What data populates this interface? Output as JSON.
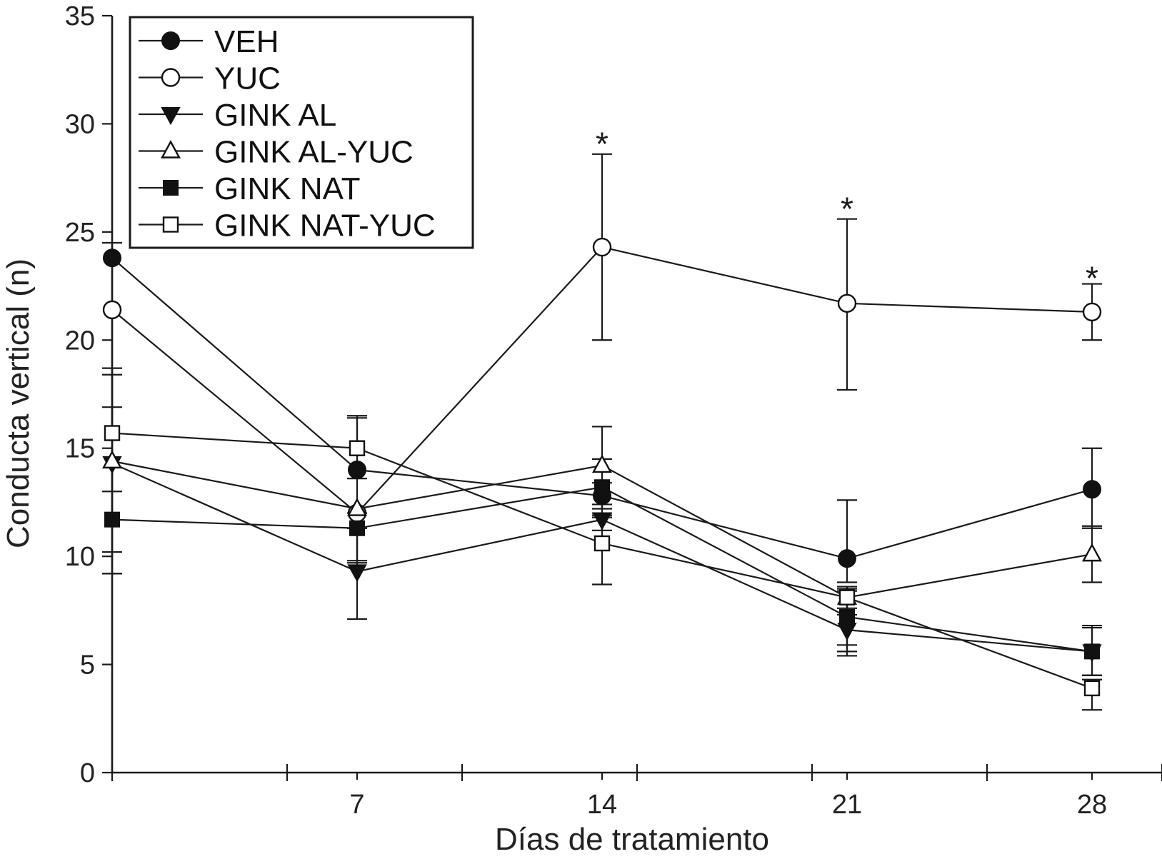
{
  "chart_data": {
    "type": "line",
    "title": "",
    "xlabel": "Días de tratamiento",
    "ylabel": "Conducta vertical (n)",
    "xlim": [
      0,
      30
    ],
    "ylim": [
      0,
      35
    ],
    "x_ticks": [
      7,
      14,
      21,
      28
    ],
    "x_tick_labels": [
      "7",
      "14",
      "21",
      "28"
    ],
    "x_minor_ticks": [
      0,
      5,
      10,
      15,
      20,
      25,
      30
    ],
    "y_ticks": [
      0,
      5,
      10,
      15,
      20,
      25,
      30,
      35
    ],
    "y_tick_labels": [
      "0",
      "5",
      "10",
      "15",
      "20",
      "25",
      "30",
      "35"
    ],
    "x": [
      0,
      7,
      14,
      21,
      28
    ],
    "grid": false,
    "legend_position": "top-left",
    "series": [
      {
        "name": "VEH",
        "marker": "filled-circle",
        "values": [
          23.8,
          14.0,
          12.8,
          9.9,
          13.1
        ],
        "err_upper": [
          null,
          null,
          13.4,
          12.6,
          15.0
        ],
        "err_lower": [
          null,
          null,
          12.2,
          8.8,
          11.3
        ]
      },
      {
        "name": "YUC",
        "marker": "open-circle",
        "values": [
          21.4,
          12.0,
          24.3,
          21.7,
          21.3
        ],
        "err_upper": [
          null,
          null,
          28.6,
          25.6,
          22.6
        ],
        "err_lower": [
          null,
          null,
          20.0,
          17.7,
          20.0
        ]
      },
      {
        "name": "GINK AL",
        "marker": "filled-triangle-down",
        "values": [
          14.3,
          9.3,
          11.7,
          6.6,
          5.6
        ],
        "err_upper": [
          18.7,
          11.3,
          12.0,
          7.3,
          6.8
        ],
        "err_lower": [
          9.2,
          7.1,
          11.2,
          5.9,
          4.5
        ]
      },
      {
        "name": "GINK AL-YUC",
        "marker": "open-triangle-up",
        "values": [
          14.4,
          12.2,
          14.2,
          8.1,
          10.1
        ],
        "err_upper": [
          18.4,
          16.5,
          16.0,
          8.6,
          11.4
        ],
        "err_lower": [
          10.2,
          9.8,
          12.4,
          7.6,
          8.8
        ]
      },
      {
        "name": "GINK NAT",
        "marker": "filled-square",
        "values": [
          11.7,
          11.3,
          13.2,
          7.2,
          5.6
        ],
        "err_upper": [
          24.5,
          12.0,
          14.5,
          8.4,
          6.7
        ],
        "err_lower": [
          9.2,
          9.7,
          11.9,
          5.4,
          4.5
        ]
      },
      {
        "name": "GINK NAT-YUC",
        "marker": "open-square",
        "values": [
          15.7,
          15.0,
          10.6,
          8.1,
          3.9
        ],
        "err_upper": [
          16.9,
          16.4,
          11.8,
          8.5,
          4.3
        ],
        "err_lower": [
          13.0,
          13.6,
          8.7,
          5.6,
          2.9
        ]
      }
    ],
    "annotations": [
      {
        "text": "*",
        "x": 14,
        "y": 29.6
      },
      {
        "text": "*",
        "x": 21,
        "y": 26.6
      },
      {
        "text": "*",
        "x": 28,
        "y": 23.4
      }
    ]
  }
}
